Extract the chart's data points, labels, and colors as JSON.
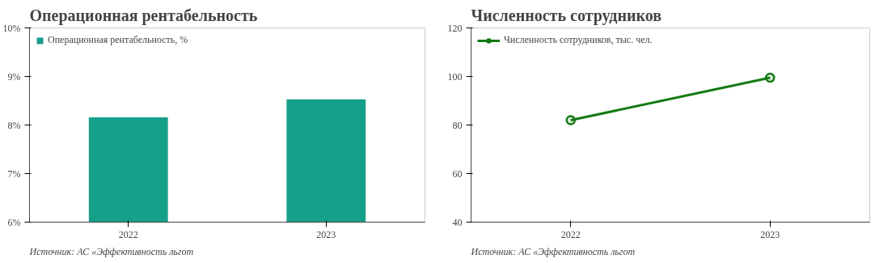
{
  "chart_data": [
    {
      "type": "bar",
      "title": "Операционная рентабельность",
      "categories": [
        "2022",
        "2023"
      ],
      "series": [
        {
          "name": "Операционная рентабельность, %",
          "color": "#17a089",
          "values": [
            8.16,
            8.53
          ]
        }
      ],
      "ylim": [
        6,
        10
      ],
      "yticks": [
        {
          "value": 6,
          "label": "6%"
        },
        {
          "value": 7,
          "label": "7%"
        },
        {
          "value": 8,
          "label": "8%"
        },
        {
          "value": 9,
          "label": "9%"
        },
        {
          "value": 10,
          "label": "10%"
        }
      ],
      "legend": "top left",
      "grid": false,
      "annotations": [
        "Источник: АС «Эффективность льгот"
      ]
    },
    {
      "type": "line",
      "title": "Численность сотрудников",
      "x": [
        2022,
        2023
      ],
      "xlim": [
        2021.5,
        2023.5
      ],
      "xticks": [
        2022,
        2023
      ],
      "series": [
        {
          "name": "Численность сотрудников, тыс. чел.",
          "color": "#137a13",
          "values": [
            82,
            99.5
          ]
        }
      ],
      "ylim": [
        40,
        120
      ],
      "yticks": [
        40,
        60,
        80,
        100,
        120
      ],
      "marker": "circle",
      "line_style": "solid",
      "legend": "top left",
      "grid": false,
      "annotations": [
        "Источник: АС «Эффективность льгот"
      ]
    }
  ]
}
